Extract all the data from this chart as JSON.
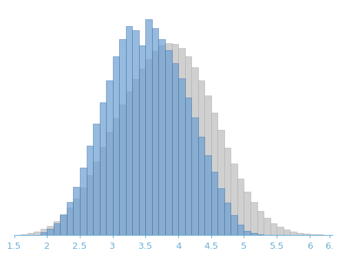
{
  "xlim": [
    1.5,
    6.35
  ],
  "ylim": [
    0,
    1.05
  ],
  "bin_width": 0.1,
  "blue_color": "#6a9fd0",
  "blue_edge": "#3a6fa8",
  "gray_color": "#d0d0d0",
  "gray_edge": "#aaaaaa",
  "blue_alpha": 0.7,
  "tick_color": "#6baed6",
  "axis_color": "#6baed6",
  "tick_fontsize": 9.5,
  "figsize": [
    4.84,
    3.63
  ],
  "dpi": 100,
  "blue_bins": [
    1.9,
    2.0,
    2.1,
    2.2,
    2.3,
    2.4,
    2.5,
    2.6,
    2.7,
    2.8,
    2.9,
    3.0,
    3.1,
    3.2,
    3.3,
    3.4,
    3.5,
    3.6,
    3.7,
    3.8,
    3.9,
    4.0,
    4.1,
    4.2,
    4.3,
    4.4,
    4.5,
    4.6,
    4.7,
    4.8,
    4.9,
    5.0,
    5.1,
    5.2
  ],
  "blue_heights": [
    0.012,
    0.028,
    0.055,
    0.095,
    0.15,
    0.22,
    0.31,
    0.41,
    0.51,
    0.61,
    0.71,
    0.82,
    0.9,
    0.96,
    0.94,
    0.87,
    0.99,
    0.95,
    0.9,
    0.85,
    0.79,
    0.72,
    0.63,
    0.54,
    0.45,
    0.365,
    0.29,
    0.215,
    0.148,
    0.09,
    0.048,
    0.02,
    0.008,
    0.003
  ],
  "gray_bins": [
    1.6,
    1.7,
    1.8,
    1.9,
    2.0,
    2.1,
    2.2,
    2.3,
    2.4,
    2.5,
    2.6,
    2.7,
    2.8,
    2.9,
    3.0,
    3.1,
    3.2,
    3.3,
    3.4,
    3.5,
    3.6,
    3.7,
    3.8,
    3.9,
    4.0,
    4.1,
    4.2,
    4.3,
    4.4,
    4.5,
    4.6,
    4.7,
    4.8,
    4.9,
    5.0,
    5.1,
    5.2,
    5.3,
    5.4,
    5.5,
    5.6,
    5.7,
    5.8,
    5.9,
    6.0,
    6.1,
    6.2
  ],
  "gray_heights": [
    0.004,
    0.009,
    0.016,
    0.027,
    0.042,
    0.063,
    0.09,
    0.125,
    0.168,
    0.218,
    0.275,
    0.338,
    0.405,
    0.472,
    0.538,
    0.6,
    0.66,
    0.715,
    0.765,
    0.808,
    0.845,
    0.87,
    0.882,
    0.878,
    0.858,
    0.82,
    0.77,
    0.71,
    0.64,
    0.562,
    0.482,
    0.402,
    0.328,
    0.26,
    0.2,
    0.15,
    0.11,
    0.078,
    0.054,
    0.037,
    0.025,
    0.016,
    0.01,
    0.006,
    0.004,
    0.002,
    0.001
  ]
}
